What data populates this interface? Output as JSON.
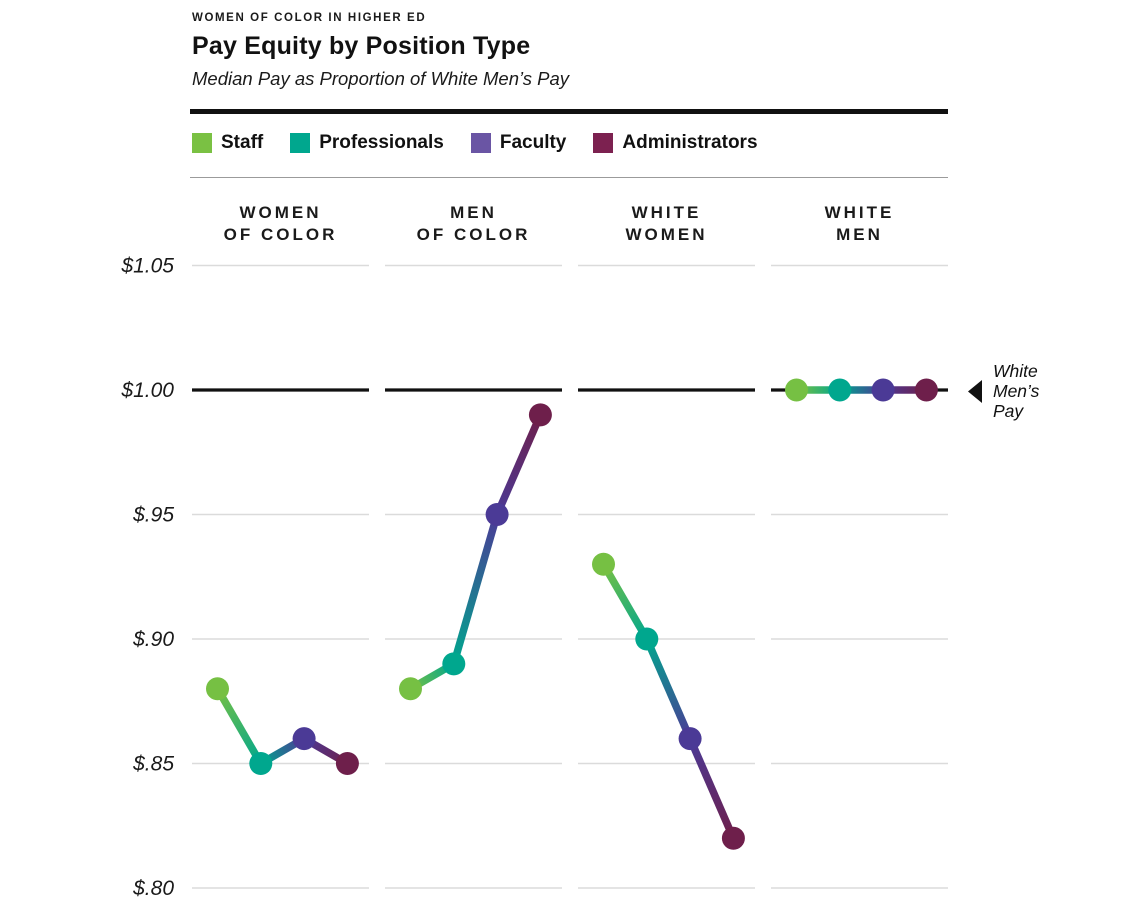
{
  "header": {
    "kicker": "WOMEN OF COLOR IN HIGHER ED",
    "title": "Pay Equity by Position Type",
    "subtitle": "Median Pay as Proportion of White Men’s Pay"
  },
  "legend": {
    "items": [
      {
        "label": "Staff",
        "color": "#7AC143",
        "dot_color": "#76C043"
      },
      {
        "label": "Professionals",
        "color": "#00A78E",
        "dot_color": "#00A78E"
      },
      {
        "label": "Faculty",
        "color": "#6A55A4",
        "dot_color": "#4B3A96"
      },
      {
        "label": "Administrators",
        "color": "#7C2150",
        "dot_color": "#6E1F4B"
      }
    ]
  },
  "chart_data": {
    "type": "line",
    "title": "Pay Equity by Position Type",
    "subtitle": "Median Pay as Proportion of White Men’s Pay",
    "kicker": "WOMEN OF COLOR IN HIGHER ED",
    "categories": [
      "WOMEN OF COLOR",
      "MEN OF COLOR",
      "WHITE WOMEN",
      "WHITE MEN"
    ],
    "series": [
      {
        "name": "Staff",
        "color": "#7AC143",
        "dot_color": "#76C043",
        "values": [
          0.88,
          0.88,
          0.93,
          1.0
        ]
      },
      {
        "name": "Professionals",
        "color": "#00A78E",
        "dot_color": "#00A78E",
        "values": [
          0.85,
          0.89,
          0.9,
          1.0
        ]
      },
      {
        "name": "Faculty",
        "color": "#6A55A4",
        "dot_color": "#4B3A96",
        "values": [
          0.86,
          0.95,
          0.86,
          1.0
        ]
      },
      {
        "name": "Administrators",
        "color": "#7C2150",
        "dot_color": "#6E1F4B",
        "values": [
          0.85,
          0.99,
          0.82,
          1.0
        ]
      }
    ],
    "y_ticks": [
      {
        "label": "$1.05",
        "value": 1.05
      },
      {
        "label": "$1.00",
        "value": 1.0
      },
      {
        "label": "$.95",
        "value": 0.95
      },
      {
        "label": "$.90",
        "value": 0.9
      },
      {
        "label": "$.85",
        "value": 0.85
      },
      {
        "label": "$.80",
        "value": 0.8
      }
    ],
    "ylim": [
      0.8,
      1.05
    ],
    "xlabel": "",
    "ylabel": "",
    "baseline_value": 1.0,
    "baseline_annotation": "White Men’s Pay",
    "annotation_lines": [
      "White",
      "Men’s",
      "Pay"
    ],
    "legend_position": "top",
    "grid": "horizontal, segmented per category",
    "colors": {
      "gridline": "#DBDBDB",
      "baseline": "#111111",
      "text": "#1A1A1A",
      "rule_thin": "#9B9B9B"
    }
  }
}
